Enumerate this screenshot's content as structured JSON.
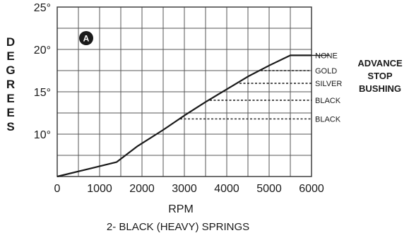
{
  "chart_data": {
    "type": "line",
    "badge": "A",
    "xlabel": "RPM",
    "ylabel": "DEGREES",
    "caption": "2- BLACK (HEAVY) SPRINGS",
    "xlim": [
      0,
      6000
    ],
    "ylim": [
      5,
      25
    ],
    "x_ticks": [
      0,
      1000,
      2000,
      3000,
      4000,
      5000,
      6000
    ],
    "x_tick_labels": [
      "0",
      "1000",
      "2000",
      "3000",
      "4000",
      "5000",
      "6000"
    ],
    "y_ticks": [
      10,
      15,
      20,
      25
    ],
    "y_tick_labels": [
      "10°",
      "15°",
      "20°",
      "25°"
    ],
    "grid": true,
    "series": [
      {
        "x": [
          0,
          1400,
          1900,
          2500,
          3000,
          3500,
          4000,
          4500,
          5000,
          5500,
          6000
        ],
        "y": [
          5,
          6.7,
          8.6,
          10.5,
          12.2,
          13.8,
          15.3,
          16.8,
          18.1,
          19.3,
          19.3
        ]
      }
    ],
    "stops": [
      {
        "label": "NONE",
        "degrees": 19.3,
        "start_rpm": 5500
      },
      {
        "label": "GOLD",
        "degrees": 17.5,
        "start_rpm": 4800
      },
      {
        "label": "SILVER",
        "degrees": 16.0,
        "start_rpm": 4300
      },
      {
        "label": "BLACK",
        "degrees": 14.0,
        "start_rpm": 3600
      },
      {
        "label": "BLACK",
        "degrees": 11.8,
        "start_rpm": 2900
      }
    ],
    "legend": {
      "lines": [
        "ADVANCE",
        "STOP",
        "BUSHING"
      ],
      "placement": "right"
    }
  }
}
